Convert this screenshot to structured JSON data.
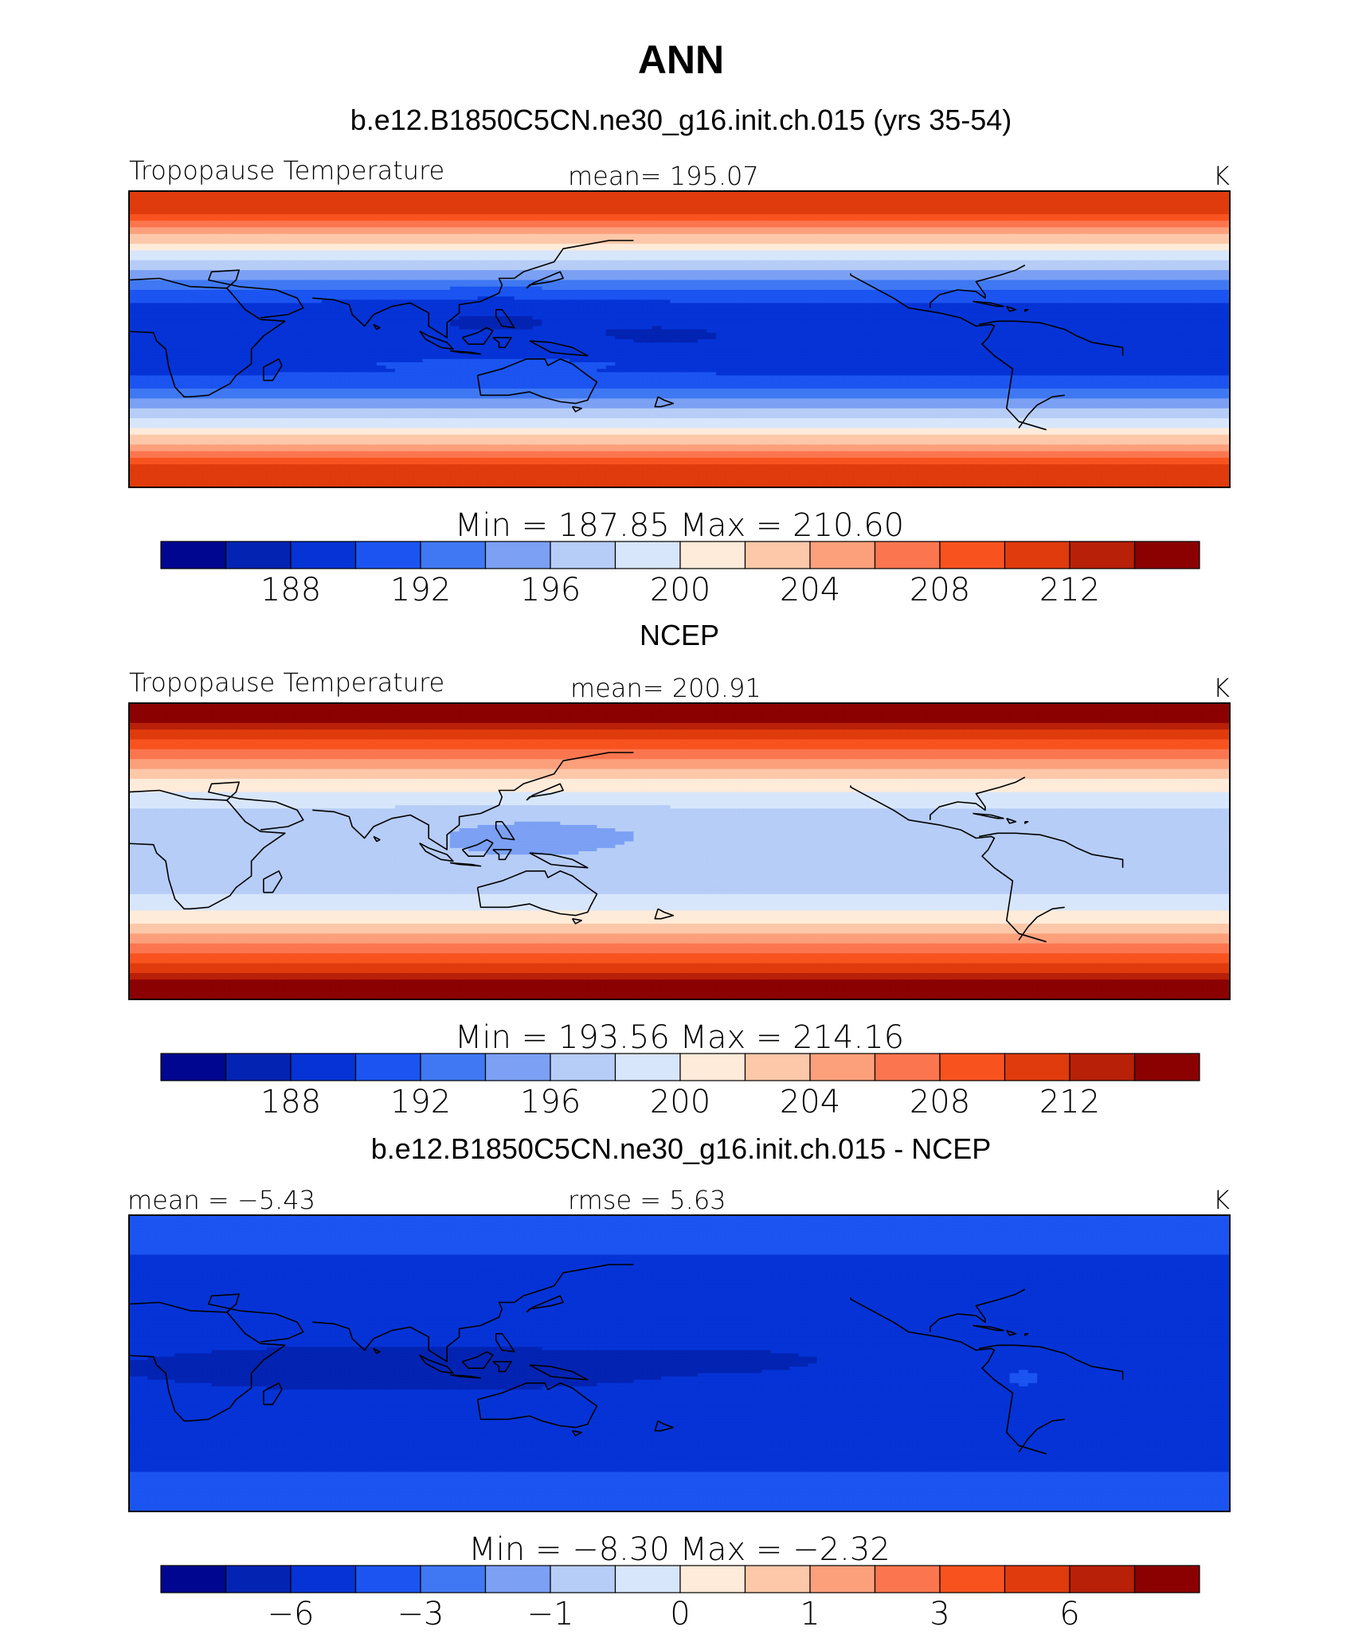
{
  "figure": {
    "title": "ANN"
  },
  "colors": {
    "palette": [
      "#00068f",
      "#0323b2",
      "#0533d6",
      "#1b54f0",
      "#3f78f2",
      "#7ba0f4",
      "#b6cdf7",
      "#d8e6fb",
      "#feebd9",
      "#fdc8a9",
      "#fca07c",
      "#fb764f",
      "#f8531f",
      "#e03b0c",
      "#b82008",
      "#8b0000"
    ],
    "coast": "#000000"
  },
  "chart_data": [
    {
      "type": "heatmap",
      "title": "b.e12.B1850C5CN.ne30_g16.init.ch.015 (yrs 35-54)",
      "left_label": "Tropopause Temperature",
      "center_label": "mean=  195.07",
      "units": "K",
      "mean": 195.07,
      "min": 187.85,
      "max": 210.6,
      "minmax_label": "Min  =  187.85  Max  =  210.60",
      "levels": [
        186,
        188,
        190,
        192,
        194,
        196,
        198,
        200,
        202,
        204,
        206,
        208,
        210,
        212,
        214
      ],
      "tick_labels": [
        "188",
        "192",
        "196",
        "200",
        "204",
        "208",
        "212"
      ],
      "tick_values": [
        188,
        192,
        196,
        200,
        204,
        208,
        212
      ],
      "xlim": [
        -180,
        180
      ],
      "ylim": [
        -90,
        90
      ]
    },
    {
      "type": "heatmap",
      "title": "NCEP",
      "left_label": "Tropopause Temperature",
      "center_label": "mean=  200.91",
      "units": "K",
      "mean": 200.91,
      "min": 193.56,
      "max": 214.16,
      "minmax_label": "Min  =  193.56  Max  =  214.16",
      "levels": [
        186,
        188,
        190,
        192,
        194,
        196,
        198,
        200,
        202,
        204,
        206,
        208,
        210,
        212,
        214
      ],
      "tick_labels": [
        "188",
        "192",
        "196",
        "200",
        "204",
        "208",
        "212"
      ],
      "tick_values": [
        188,
        192,
        196,
        200,
        204,
        208,
        212
      ],
      "xlim": [
        -180,
        180
      ],
      "ylim": [
        -90,
        90
      ]
    },
    {
      "type": "heatmap",
      "title": "b.e12.B1850C5CN.ne30_g16.init.ch.015 - NCEP",
      "left_label": "mean =   −5.43",
      "center_label": "rmse =     5.63",
      "units": "K",
      "mean": -5.43,
      "rmse": 5.63,
      "min": -8.3,
      "max": -2.32,
      "minmax_label": "Min  =   −8.30  Max  =   −2.32",
      "levels": [
        -8,
        -6,
        -4,
        -3,
        -2,
        -1,
        -0.5,
        0,
        0.5,
        1,
        2,
        3,
        4,
        6,
        8
      ],
      "tick_labels": [
        "−6",
        "−3",
        "−1",
        "0",
        "1",
        "3",
        "6"
      ],
      "tick_values": [
        -6,
        -3,
        -1,
        0,
        1,
        3,
        6
      ],
      "xlim": [
        -180,
        180
      ],
      "ylim": [
        -90,
        90
      ]
    }
  ]
}
